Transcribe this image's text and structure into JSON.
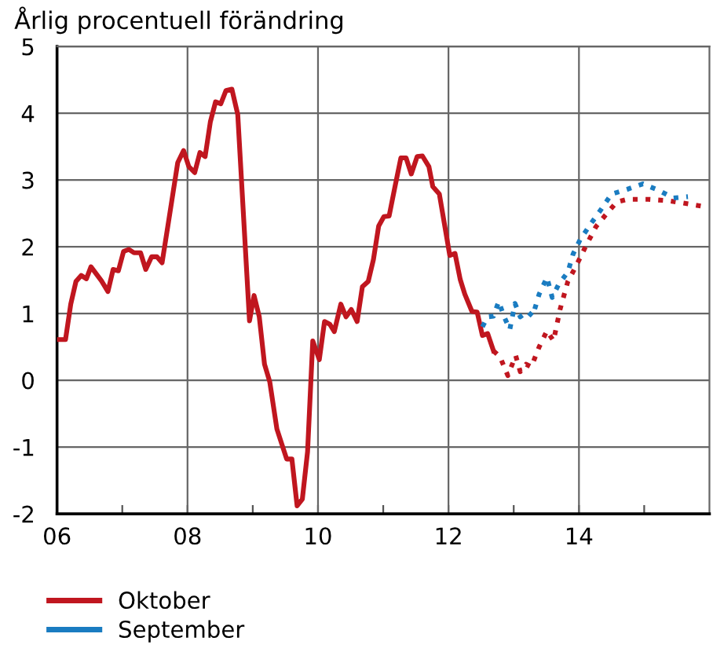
{
  "chart_data": {
    "type": "line",
    "title": "Årlig procentuell förändring",
    "xlim": [
      2006,
      2016
    ],
    "ylim": [
      -2,
      5
    ],
    "xticks": [
      {
        "value": 2006,
        "label": "06"
      },
      {
        "value": 2007,
        "label": null
      },
      {
        "value": 2008,
        "label": "08"
      },
      {
        "value": 2009,
        "label": null
      },
      {
        "value": 2010,
        "label": "10"
      },
      {
        "value": 2011,
        "label": null
      },
      {
        "value": 2012,
        "label": "12"
      },
      {
        "value": 2013,
        "label": null
      },
      {
        "value": 2014,
        "label": "14"
      },
      {
        "value": 2015,
        "label": null
      }
    ],
    "yticks": [
      -2,
      -1,
      0,
      1,
      2,
      3,
      4,
      5
    ],
    "grid": true,
    "legend": "bottom left",
    "series": [
      {
        "name": "Oktober",
        "color": "#c0161f",
        "line_style": "solid",
        "x": [
          2006.0,
          2006.13,
          2006.21,
          2006.29,
          2006.37,
          2006.45,
          2006.52,
          2006.68,
          2006.78,
          2006.86,
          2006.94,
          2007.02,
          2007.1,
          2007.18,
          2007.28,
          2007.36,
          2007.45,
          2007.53,
          2007.61,
          2007.71,
          2007.85,
          2007.94,
          2008.02,
          2008.11,
          2008.19,
          2008.27,
          2008.35,
          2008.43,
          2008.51,
          2008.59,
          2008.68,
          2008.77,
          2008.95,
          2009.02,
          2009.1,
          2009.18,
          2009.26,
          2009.37,
          2009.52,
          2009.6,
          2009.68,
          2009.76,
          2009.84,
          2009.92,
          2010.02,
          2010.1,
          2010.18,
          2010.25,
          2010.35,
          2010.43,
          2010.51,
          2010.6,
          2010.68,
          2010.77,
          2010.85,
          2010.93,
          2011.01,
          2011.09,
          2011.18,
          2011.27,
          2011.35,
          2011.43,
          2011.52,
          2011.6,
          2011.7,
          2011.76,
          2011.86,
          2012.02,
          2012.1,
          2012.18,
          2012.25,
          2012.36,
          2012.44,
          2012.52,
          2012.6,
          2012.69
        ],
        "values": [
          0.61,
          0.61,
          1.14,
          1.48,
          1.57,
          1.52,
          1.7,
          1.49,
          1.33,
          1.66,
          1.64,
          1.93,
          1.96,
          1.91,
          1.91,
          1.66,
          1.85,
          1.85,
          1.76,
          2.38,
          3.26,
          3.44,
          3.2,
          3.11,
          3.41,
          3.35,
          3.87,
          4.17,
          4.14,
          4.34,
          4.36,
          3.98,
          0.89,
          1.27,
          0.95,
          0.24,
          -0.02,
          -0.73,
          -1.18,
          -1.18,
          -1.88,
          -1.78,
          -1.07,
          0.59,
          0.31,
          0.88,
          0.84,
          0.73,
          1.14,
          0.95,
          1.06,
          0.88,
          1.4,
          1.48,
          1.81,
          2.31,
          2.45,
          2.46,
          2.9,
          3.33,
          3.33,
          3.09,
          3.35,
          3.36,
          3.2,
          2.9,
          2.79,
          1.87,
          1.9,
          1.51,
          1.29,
          1.03,
          1.02,
          0.67,
          0.7,
          0.44
        ]
      },
      {
        "color": "#c0161f",
        "line_style": "dotted",
        "x": [
          2012.69,
          2012.79,
          2012.91,
          2013.03,
          2013.1,
          2013.19,
          2013.27,
          2013.39,
          2013.51,
          2013.61,
          2013.71,
          2013.83,
          2013.95,
          2014.1,
          2014.26,
          2014.42,
          2014.58,
          2014.74,
          2015.06,
          2015.37,
          2015.69,
          2015.93
        ],
        "values": [
          0.44,
          0.35,
          0.07,
          0.37,
          0.13,
          0.24,
          0.2,
          0.5,
          0.74,
          0.59,
          1.06,
          1.48,
          1.7,
          2.0,
          2.3,
          2.49,
          2.67,
          2.71,
          2.71,
          2.69,
          2.64,
          2.6
        ]
      },
      {
        "name": "September",
        "color": "#1a7cc1",
        "line_style": "dotted",
        "x": [
          2012.52,
          2012.6,
          2012.69,
          2012.77,
          2012.85,
          2012.94,
          2013.02,
          2013.1,
          2013.21,
          2013.29,
          2013.39,
          2013.51,
          2013.59,
          2013.69,
          2013.83,
          2013.91,
          2014.02,
          2014.18,
          2014.34,
          2014.5,
          2014.74,
          2014.98,
          2015.21,
          2015.45,
          2015.67
        ],
        "values": [
          0.8,
          0.95,
          0.96,
          1.18,
          0.96,
          0.76,
          1.15,
          0.95,
          1.03,
          0.96,
          1.29,
          1.54,
          1.24,
          1.44,
          1.62,
          1.89,
          2.11,
          2.34,
          2.56,
          2.79,
          2.86,
          2.94,
          2.85,
          2.73,
          2.75
        ]
      }
    ]
  }
}
